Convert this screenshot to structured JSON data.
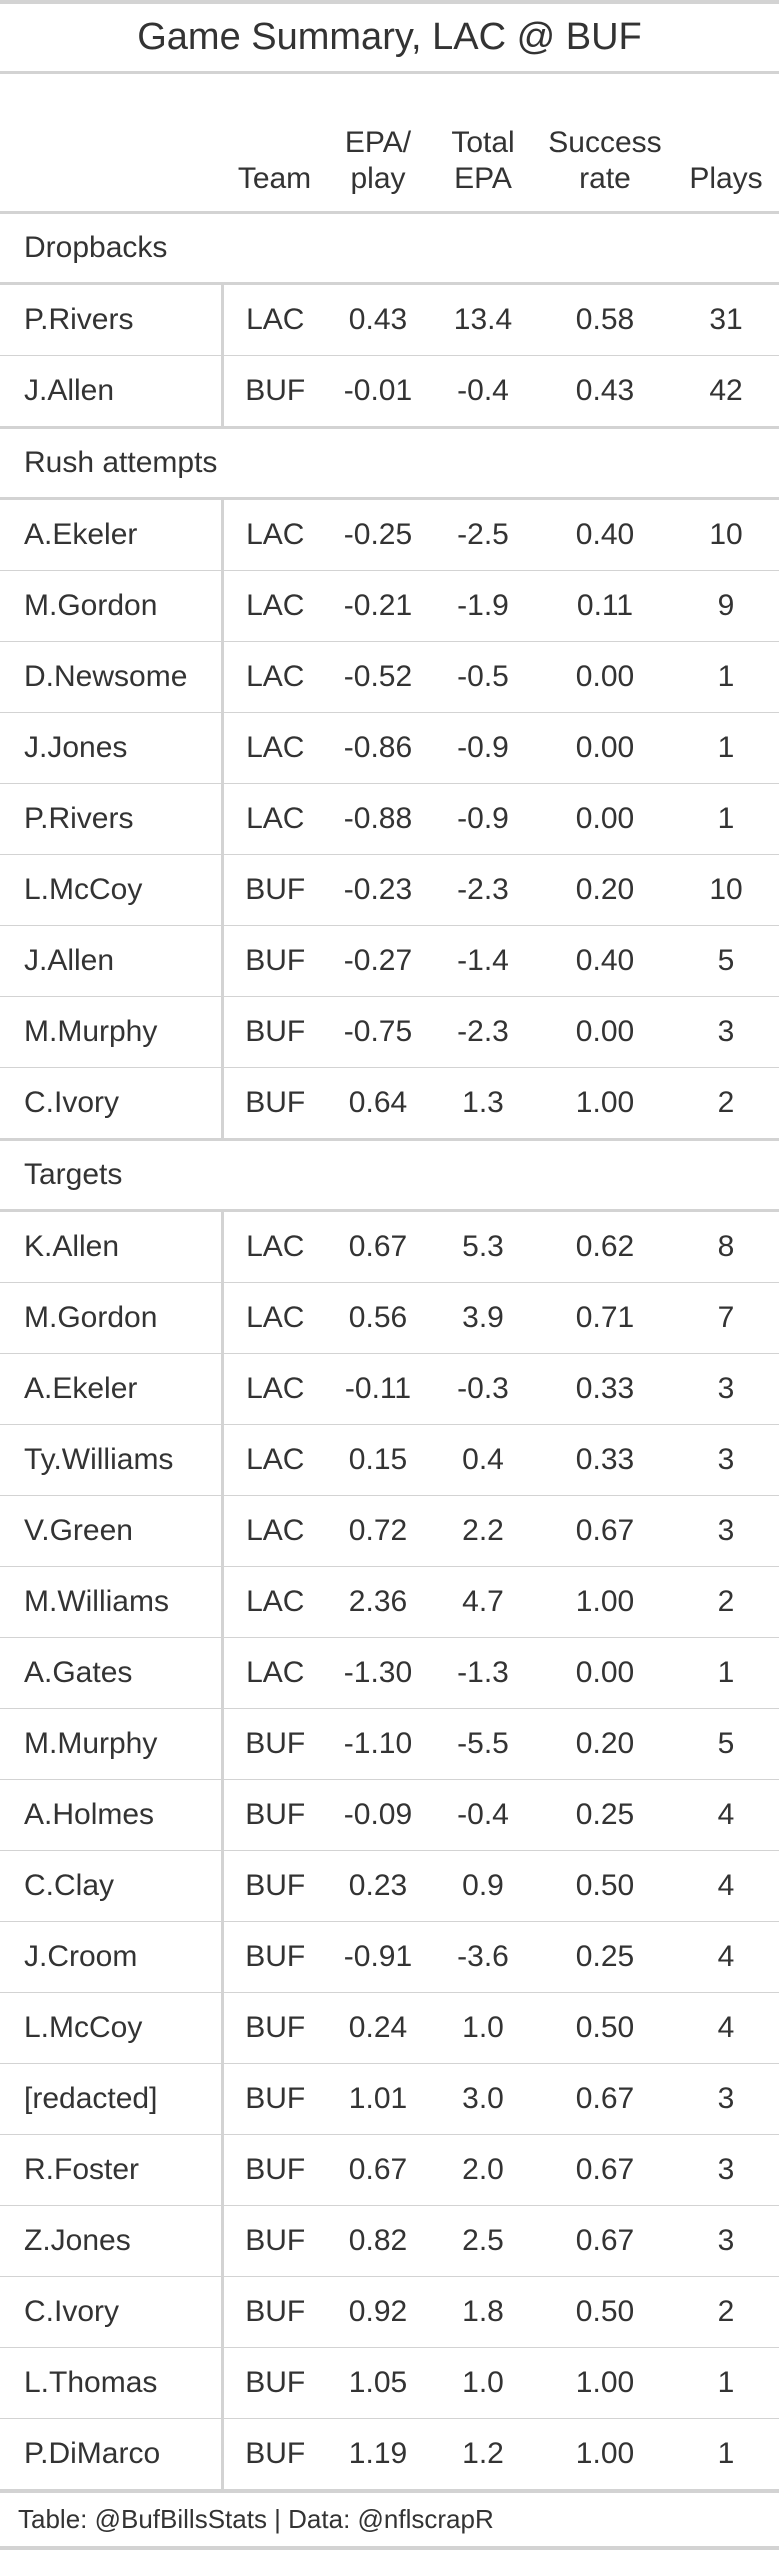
{
  "title": "Game Summary, LAC @ BUF",
  "columns": {
    "player": "",
    "team": "Team",
    "epa_play_1": "EPA/",
    "epa_play_2": "play",
    "total_epa_1": "Total",
    "total_epa_2": "EPA",
    "success_1": "Success",
    "success_2": "rate",
    "plays": "Plays"
  },
  "groups": [
    {
      "label": "Dropbacks",
      "rows": [
        {
          "player": "P.Rivers",
          "team": "LAC",
          "epa_play": "0.43",
          "total_epa": "13.4",
          "success": "0.58",
          "plays": "31"
        },
        {
          "player": "J.Allen",
          "team": "BUF",
          "epa_play": "-0.01",
          "total_epa": "-0.4",
          "success": "0.43",
          "plays": "42"
        }
      ]
    },
    {
      "label": "Rush attempts",
      "rows": [
        {
          "player": "A.Ekeler",
          "team": "LAC",
          "epa_play": "-0.25",
          "total_epa": "-2.5",
          "success": "0.40",
          "plays": "10"
        },
        {
          "player": "M.Gordon",
          "team": "LAC",
          "epa_play": "-0.21",
          "total_epa": "-1.9",
          "success": "0.11",
          "plays": "9"
        },
        {
          "player": "D.Newsome",
          "team": "LAC",
          "epa_play": "-0.52",
          "total_epa": "-0.5",
          "success": "0.00",
          "plays": "1"
        },
        {
          "player": "J.Jones",
          "team": "LAC",
          "epa_play": "-0.86",
          "total_epa": "-0.9",
          "success": "0.00",
          "plays": "1"
        },
        {
          "player": "P.Rivers",
          "team": "LAC",
          "epa_play": "-0.88",
          "total_epa": "-0.9",
          "success": "0.00",
          "plays": "1"
        },
        {
          "player": "L.McCoy",
          "team": "BUF",
          "epa_play": "-0.23",
          "total_epa": "-2.3",
          "success": "0.20",
          "plays": "10"
        },
        {
          "player": "J.Allen",
          "team": "BUF",
          "epa_play": "-0.27",
          "total_epa": "-1.4",
          "success": "0.40",
          "plays": "5"
        },
        {
          "player": "M.Murphy",
          "team": "BUF",
          "epa_play": "-0.75",
          "total_epa": "-2.3",
          "success": "0.00",
          "plays": "3"
        },
        {
          "player": "C.Ivory",
          "team": "BUF",
          "epa_play": "0.64",
          "total_epa": "1.3",
          "success": "1.00",
          "plays": "2"
        }
      ]
    },
    {
      "label": "Targets",
      "rows": [
        {
          "player": "K.Allen",
          "team": "LAC",
          "epa_play": "0.67",
          "total_epa": "5.3",
          "success": "0.62",
          "plays": "8"
        },
        {
          "player": "M.Gordon",
          "team": "LAC",
          "epa_play": "0.56",
          "total_epa": "3.9",
          "success": "0.71",
          "plays": "7"
        },
        {
          "player": "A.Ekeler",
          "team": "LAC",
          "epa_play": "-0.11",
          "total_epa": "-0.3",
          "success": "0.33",
          "plays": "3"
        },
        {
          "player": "Ty.Williams",
          "team": "LAC",
          "epa_play": "0.15",
          "total_epa": "0.4",
          "success": "0.33",
          "plays": "3"
        },
        {
          "player": "V.Green",
          "team": "LAC",
          "epa_play": "0.72",
          "total_epa": "2.2",
          "success": "0.67",
          "plays": "3"
        },
        {
          "player": "M.Williams",
          "team": "LAC",
          "epa_play": "2.36",
          "total_epa": "4.7",
          "success": "1.00",
          "plays": "2"
        },
        {
          "player": "A.Gates",
          "team": "LAC",
          "epa_play": "-1.30",
          "total_epa": "-1.3",
          "success": "0.00",
          "plays": "1"
        },
        {
          "player": "M.Murphy",
          "team": "BUF",
          "epa_play": "-1.10",
          "total_epa": "-5.5",
          "success": "0.20",
          "plays": "5"
        },
        {
          "player": "A.Holmes",
          "team": "BUF",
          "epa_play": "-0.09",
          "total_epa": "-0.4",
          "success": "0.25",
          "plays": "4"
        },
        {
          "player": "C.Clay",
          "team": "BUF",
          "epa_play": "0.23",
          "total_epa": "0.9",
          "success": "0.50",
          "plays": "4"
        },
        {
          "player": "J.Croom",
          "team": "BUF",
          "epa_play": "-0.91",
          "total_epa": "-3.6",
          "success": "0.25",
          "plays": "4"
        },
        {
          "player": "L.McCoy",
          "team": "BUF",
          "epa_play": "0.24",
          "total_epa": "1.0",
          "success": "0.50",
          "plays": "4"
        },
        {
          "player": "[redacted]",
          "team": "BUF",
          "epa_play": "1.01",
          "total_epa": "3.0",
          "success": "0.67",
          "plays": "3"
        },
        {
          "player": "R.Foster",
          "team": "BUF",
          "epa_play": "0.67",
          "total_epa": "2.0",
          "success": "0.67",
          "plays": "3"
        },
        {
          "player": "Z.Jones",
          "team": "BUF",
          "epa_play": "0.82",
          "total_epa": "2.5",
          "success": "0.67",
          "plays": "3"
        },
        {
          "player": "C.Ivory",
          "team": "BUF",
          "epa_play": "0.92",
          "total_epa": "1.8",
          "success": "0.50",
          "plays": "2"
        },
        {
          "player": "L.Thomas",
          "team": "BUF",
          "epa_play": "1.05",
          "total_epa": "1.0",
          "success": "1.00",
          "plays": "1"
        },
        {
          "player": "P.DiMarco",
          "team": "BUF",
          "epa_play": "1.19",
          "total_epa": "1.2",
          "success": "1.00",
          "plays": "1"
        }
      ]
    }
  ],
  "footer": "Table: @BufBillsStats | Data: @nflscrapR"
}
